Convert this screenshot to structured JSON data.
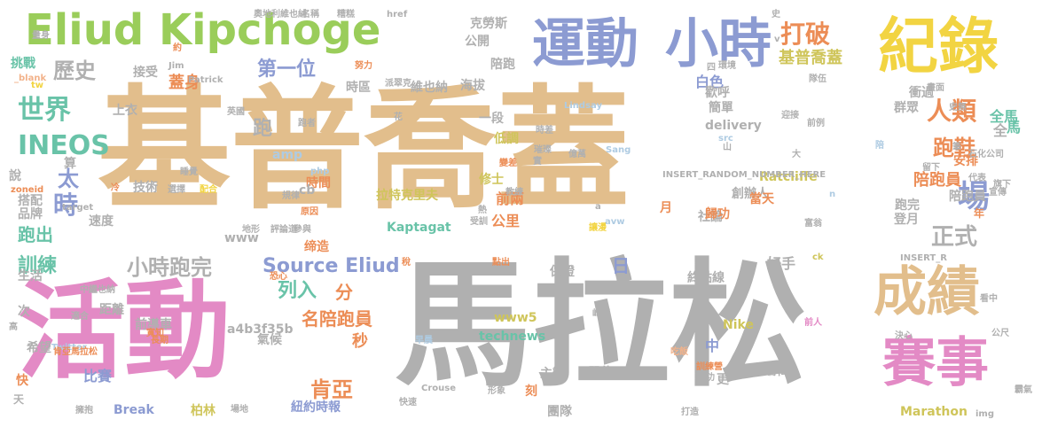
{
  "palette": {
    "tan": "#e2be8c",
    "gray": "#b0b0b0",
    "pink": "#e38ac5",
    "green": "#9acd5a",
    "blue": "#8c9bd2",
    "yellow": "#f2d442",
    "teal": "#69c3a8",
    "orange": "#ec8d56",
    "lightblue": "#aecbe2",
    "olive": "#cfc55a",
    "peach": "#f2b28a"
  },
  "words": [
    "基普喬蓋",
    "馬拉松",
    "活動",
    "Eliud Kipchoge",
    "運動",
    "小時",
    "紀錄",
    "成績",
    "賽事",
    "INEOS",
    "世界",
    "歷史",
    "打破",
    "第一位",
    "人類",
    "跑鞋",
    "場",
    "時",
    "太",
    "跑",
    "訓練",
    "蓋身",
    "跑出",
    "正式",
    "肯亞",
    "陪跑員",
    "小時跑完",
    "Source Eliud",
    "列入",
    "分",
    "秒",
    "名陪跑員",
    "紐約時報",
    "日",
    "保證",
    "終點線",
    "好手",
    "Nike",
    "中",
    "創辦人",
    "基普喬蓋",
    "全",
    "馬",
    "Kaptagat",
    "拉特克里夫",
    "前導車",
    "時間",
    "缔造",
    "技術",
    "主辦",
    "單位",
    "團隊",
    "Break",
    "柏林",
    "比賽",
    "Marathon",
    "編輯",
    "technews",
    "www5",
    "公里",
    "前兩",
    "修士",
    "生活",
    "品牌",
    "搭配",
    "氣候",
    "社論",
    "更",
    "刻",
    "當天",
    "安排",
    "歸功",
    "年",
    "登月",
    "陪跑員",
    "跑完",
    "白色",
    "上衣",
    "海拔",
    "維也納",
    "一段",
    "低調",
    "時區",
    "陪跑",
    "公開",
    "克勞斯",
    "接受",
    "衝過",
    "delivery",
    "歡呼",
    "簡單",
    "群眾",
    "陪",
    "Lindsay",
    "Ratcliffe",
    "cb",
    "amp",
    "php",
    "INSERT_RANDOM_NUMBER_HERE",
    "a4b3f35b",
    "www",
    "速度",
    "說",
    "算",
    "次",
    "距離",
    "適合",
    "高",
    "希望",
    "快",
    "天",
    "擁抱",
    "場地",
    "早晨",
    "Twitter",
    "Crouse",
    "吃飯",
    "成功",
    "決心",
    "公尺",
    "看中",
    "霸氣",
    "img",
    "前人",
    "訓練營",
    "打造",
    "快速",
    "形象",
    "崎嶇",
    "教練",
    "稅",
    "點出",
    "恐心",
    "評論道",
    "參與",
    "地形",
    "規律",
    "原因",
    "配合",
    "冷",
    "選擇",
    "睡覺",
    "target",
    "zoneid",
    "中繼也納",
    "肯亞馬拉松",
    "長期",
    "寬知",
    "量身",
    "奧地利維也納",
    "名稱",
    "糟糕",
    "href",
    "_blank",
    "Jim",
    "Patrick",
    "努力",
    "派翠克",
    "約",
    "挑戰",
    "tw",
    "花",
    "英國",
    "環境",
    "隊伍",
    "前例",
    "畫面",
    "迎接",
    "山",
    "筆",
    "史無",
    "石化公司",
    "留下",
    "代表",
    "旗下",
    "宣傳",
    "富翁",
    "Sang",
    "ck",
    "INSERT_R",
    "n",
    "a",
    "avw",
    "讓漫",
    "受訓",
    "熱",
    "變差",
    "時差",
    "億萬",
    "璀璨",
    "實",
    "月",
    "大",
    "v",
    "史",
    "四",
    "src",
    "全馬",
    "跑者"
  ]
}
